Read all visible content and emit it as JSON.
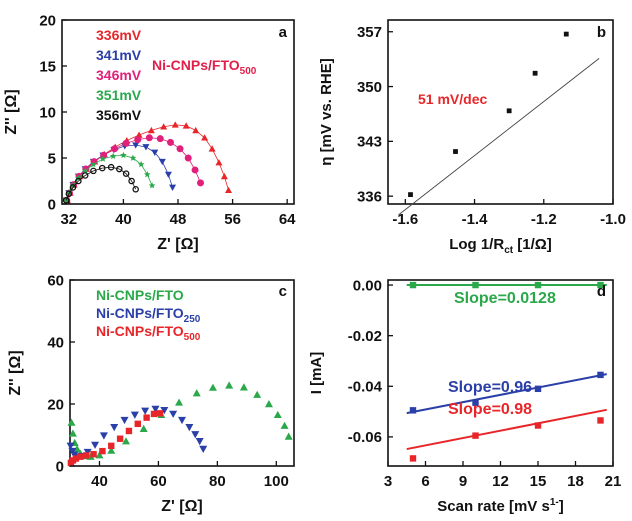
{
  "chart_data": [
    {
      "panel": "a",
      "type": "scatter",
      "xlabel": "Z' [Ω]",
      "ylabel": "Z'' [Ω]",
      "xlim": [
        31,
        65
      ],
      "ylim": [
        0,
        20
      ],
      "xticks": [
        "32",
        "40",
        "48",
        "56",
        "64"
      ],
      "yticks": [
        "0",
        "5",
        "10",
        "15",
        "20"
      ],
      "annotation": "Ni-CNPs/FTO",
      "annotation_sub": "500",
      "annotation_color": "#e0204a",
      "series": [
        {
          "name": "336mV",
          "color": "#e8262a",
          "marker": "triangle",
          "x": [
            31.8,
            32.2,
            32.8,
            33.6,
            34.6,
            35.8,
            37.2,
            38.8,
            40.5,
            42.3,
            44.1,
            45.9,
            47.6,
            49.2,
            50.6,
            51.9,
            53.0,
            54.0,
            54.8,
            55.4
          ],
          "y": [
            0.4,
            1.2,
            2.1,
            3.0,
            3.8,
            4.6,
            5.4,
            6.2,
            6.9,
            7.5,
            8.0,
            8.4,
            8.6,
            8.5,
            8.0,
            7.2,
            6.0,
            4.5,
            3.0,
            1.5
          ]
        },
        {
          "name": "341mV",
          "color": "#2b3fa8",
          "marker": "triangle-down",
          "x": [
            31.6,
            32.0,
            32.6,
            33.4,
            34.4,
            35.6,
            37.0,
            38.6,
            40.2,
            41.8,
            43.3,
            44.6,
            45.7,
            46.6,
            47.2
          ],
          "y": [
            0.4,
            1.2,
            2.1,
            3.0,
            3.8,
            4.6,
            5.3,
            5.9,
            6.3,
            6.4,
            6.2,
            5.6,
            4.6,
            3.2,
            1.8
          ]
        },
        {
          "name": "346mV",
          "color": "#e0207a",
          "marker": "circle",
          "x": [
            31.7,
            32.1,
            32.7,
            33.5,
            34.5,
            35.7,
            37.1,
            38.7,
            40.4,
            42.1,
            43.8,
            45.4,
            46.9,
            48.3,
            49.5,
            50.5,
            51.3
          ],
          "y": [
            0.4,
            1.2,
            2.1,
            3.0,
            3.8,
            4.6,
            5.3,
            6.0,
            6.6,
            7.0,
            7.2,
            7.1,
            6.7,
            6.0,
            5.0,
            3.7,
            2.3
          ]
        },
        {
          "name": "351mV",
          "color": "#2aa84a",
          "marker": "star",
          "x": [
            31.6,
            32.0,
            32.6,
            33.4,
            34.4,
            35.6,
            37.0,
            38.5,
            40.0,
            41.4,
            42.6,
            43.5,
            44.2
          ],
          "y": [
            0.4,
            1.2,
            2.0,
            2.8,
            3.6,
            4.3,
            4.9,
            5.2,
            5.3,
            5.0,
            4.3,
            3.2,
            2.0
          ]
        },
        {
          "name": "356mV",
          "color": "#111111",
          "marker": "circle-open",
          "x": [
            31.6,
            32.0,
            32.6,
            33.4,
            34.4,
            35.6,
            36.9,
            38.2,
            39.4,
            40.4,
            41.2,
            41.8
          ],
          "y": [
            0.4,
            1.1,
            1.8,
            2.5,
            3.1,
            3.6,
            3.9,
            4.0,
            3.8,
            3.3,
            2.5,
            1.6
          ]
        }
      ]
    },
    {
      "panel": "b",
      "type": "scatter",
      "xlabel": "Log 1/R",
      "xlabel_sub": "ct",
      "xlabel_tail": " [1/Ω]",
      "ylabel": "η [mV vs. RHE]",
      "xlim": [
        -1.65,
        -1.0
      ],
      "ylim": [
        335,
        358.5
      ],
      "xticks": [
        "-1.6",
        "-1.4",
        "-1.2",
        "-1.0"
      ],
      "yticks": [
        "336",
        "343",
        "350",
        "357"
      ],
      "annotation": "51 mV/dec",
      "annotation_color": "#e8262a",
      "points": {
        "x": [
          -1.585,
          -1.455,
          -1.3,
          -1.225,
          -1.135
        ],
        "y": [
          336.2,
          341.7,
          346.9,
          351.7,
          356.7
        ]
      },
      "fit": {
        "x": [
          -1.62,
          -1.04
        ],
        "y": [
          333.6,
          353.6
        ]
      }
    },
    {
      "panel": "c",
      "type": "scatter",
      "xlabel": "Z' [Ω]",
      "ylabel": "Z'' [Ω]",
      "xlim": [
        30,
        106
      ],
      "ylim": [
        0,
        60
      ],
      "xticks": [
        "40",
        "60",
        "80",
        "100"
      ],
      "yticks": [
        "0",
        "20",
        "40",
        "60"
      ],
      "series": [
        {
          "name": "Ni-CNPs/FTO",
          "color": "#2aa84a",
          "marker": "triangle",
          "x": [
            30.5,
            31.0,
            31.6,
            32.4,
            33.5,
            35.0,
            37.0,
            40.0,
            44.0,
            49.0,
            55.0,
            61.0,
            67.0,
            73.0,
            78.5,
            84.0,
            89.0,
            93.5,
            97.5,
            100.5,
            102.8,
            104.2
          ],
          "y": [
            14.0,
            10.5,
            7.5,
            5.5,
            4.0,
            3.2,
            3.0,
            3.5,
            5.0,
            8.0,
            12.0,
            16.5,
            20.5,
            23.5,
            25.3,
            26.0,
            25.4,
            23.0,
            20.0,
            16.5,
            13.0,
            9.5
          ]
        },
        {
          "name": "Ni-CNPs/FTO",
          "sub": "250",
          "color": "#2b3fa8",
          "marker": "triangle-down",
          "x": [
            30.2,
            30.8,
            31.5,
            32.5,
            34.0,
            36.0,
            38.5,
            41.5,
            45.0,
            48.5,
            52.0,
            55.5,
            59.0,
            62.0,
            65.0,
            68.0,
            70.5,
            72.5,
            74.0,
            75.2
          ],
          "y": [
            6.5,
            4.8,
            3.6,
            3.0,
            3.2,
            4.5,
            6.8,
            9.8,
            12.5,
            14.8,
            16.5,
            17.8,
            18.4,
            18.0,
            16.8,
            14.8,
            12.5,
            10.2,
            8.0,
            5.5
          ]
        },
        {
          "name": "Ni-CNPs/FTO",
          "sub": "500",
          "color": "#e8262a",
          "marker": "square",
          "x": [
            30.3,
            31.0,
            32.0,
            33.5,
            35.5,
            38.0,
            41.0,
            44.0,
            47.0,
            50.0,
            53.0,
            56.0,
            58.5,
            60.5
          ],
          "y": [
            1.0,
            1.8,
            2.4,
            3.0,
            3.4,
            3.8,
            4.8,
            6.5,
            8.8,
            11.3,
            13.6,
            15.6,
            16.8,
            17.0
          ]
        }
      ]
    },
    {
      "panel": "d",
      "type": "scatter",
      "xlabel": "Scan rate [mV s",
      "xlabel_sup": "1-",
      "xlabel_tail": "]",
      "ylabel": "I [mA]",
      "xlim": [
        3,
        21
      ],
      "ylim": [
        -0.0715,
        0.002
      ],
      "xticks": [
        "3",
        "6",
        "9",
        "12",
        "15",
        "18",
        "21"
      ],
      "yticks": [
        "0.00",
        "-0.02",
        "-0.04",
        "-0.06"
      ],
      "series": [
        {
          "name": "",
          "color": "#2aa84a",
          "marker": "square",
          "x": [
            5,
            10,
            15,
            20
          ],
          "y": [
            0.0,
            0.0,
            0.0,
            0.0
          ],
          "fit": {
            "x": [
              4.5,
              20.5
            ],
            "y": [
              0.0,
              0.0
            ]
          },
          "slope_label": "Slope=0.0128"
        },
        {
          "name": "",
          "color": "#2b3fa8",
          "marker": "square",
          "x": [
            5,
            10,
            15,
            20
          ],
          "y": [
            -0.0495,
            -0.0465,
            -0.041,
            -0.0355
          ],
          "fit": {
            "x": [
              4.5,
              20.5
            ],
            "y": [
              -0.0506,
              -0.0352
            ]
          },
          "slope_label": "Slope=0.96"
        },
        {
          "name": "",
          "color": "#e8262a",
          "marker": "square",
          "x": [
            5,
            10,
            15,
            20
          ],
          "y": [
            -0.0685,
            -0.0595,
            -0.0555,
            -0.0535
          ],
          "fit": {
            "x": [
              4.5,
              20.5
            ],
            "y": [
              -0.0648,
              -0.0493
            ]
          },
          "slope_label": "Slope=0.98"
        }
      ]
    }
  ]
}
